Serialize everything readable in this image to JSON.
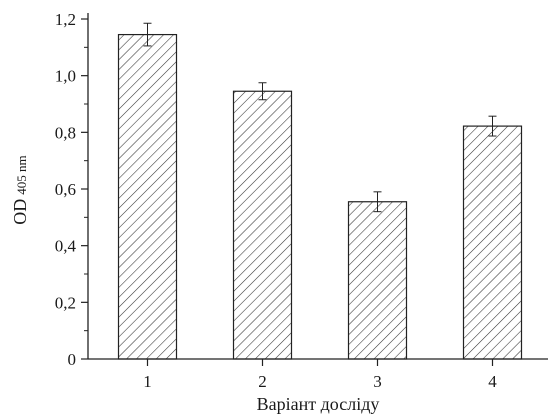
{
  "chart_data": {
    "type": "bar",
    "categories": [
      "1",
      "2",
      "3",
      "4"
    ],
    "values": [
      1.145,
      0.945,
      0.555,
      0.822
    ],
    "errors": [
      0.04,
      0.03,
      0.035,
      0.035
    ],
    "title": "",
    "xlabel": "Варіант досліду",
    "ylabel": "OD",
    "ylabel_sub": "405 nm",
    "ylim": [
      0,
      1.2
    ],
    "yticks": [
      0,
      0.2,
      0.4,
      0.6,
      0.8,
      1.0,
      1.2
    ],
    "ytick_labels": [
      "0",
      "0,2",
      "0,4",
      "0,6",
      "0,8",
      "1,0",
      "1,2"
    ],
    "bar_fill": "hatched",
    "grid": false,
    "bar_color": "#ffffff",
    "edge_color": "#222222"
  }
}
